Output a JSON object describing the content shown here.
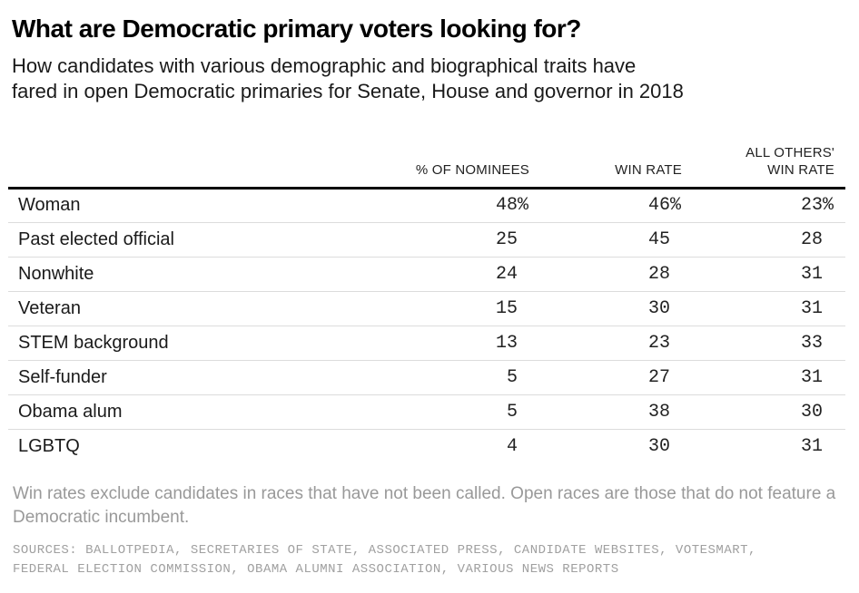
{
  "header": {
    "title": "What are Democratic primary voters looking for?",
    "subtitle": "How candidates with various demographic and biographical traits have\nfared in open Democratic primaries for Senate, House and governor in 2018"
  },
  "chart_data": {
    "type": "table",
    "title": "What are Democratic primary voters looking for?",
    "subtitle": "How candidates with various demographic and biographical traits have fared in open Democratic primaries for Senate, House and governor in 2018",
    "columns": [
      "% OF NOMINEES",
      "WIN RATE",
      "ALL OTHERS' WIN RATE"
    ],
    "col_headers_display": [
      "% OF NOMINEES",
      "WIN RATE",
      "ALL OTHERS'\nWIN RATE"
    ],
    "units": "percent",
    "rows": [
      {
        "label": "Woman",
        "values": [
          48,
          46,
          23
        ],
        "suffix": "%"
      },
      {
        "label": "Past elected official",
        "values": [
          25,
          45,
          28
        ],
        "suffix": ""
      },
      {
        "label": "Nonwhite",
        "values": [
          24,
          28,
          31
        ],
        "suffix": ""
      },
      {
        "label": "Veteran",
        "values": [
          15,
          30,
          31
        ],
        "suffix": ""
      },
      {
        "label": "STEM background",
        "values": [
          13,
          23,
          33
        ],
        "suffix": ""
      },
      {
        "label": "Self-funder",
        "values": [
          5,
          27,
          31
        ],
        "suffix": ""
      },
      {
        "label": "Obama alum",
        "values": [
          5,
          38,
          30
        ],
        "suffix": ""
      },
      {
        "label": "LGBTQ",
        "values": [
          4,
          30,
          31
        ],
        "suffix": ""
      }
    ]
  },
  "footer": {
    "note": "Win rates exclude candidates in races that have not been called. Open races are those that do not feature a\nDemocratic incumbent.",
    "sources": "SOURCES: BALLOTPEDIA, SECRETARIES OF STATE, ASSOCIATED PRESS, CANDIDATE WEBSITES, VOTESMART,\nFEDERAL ELECTION COMMISSION, OBAMA ALUMNI ASSOCIATION, VARIOUS NEWS REPORTS"
  },
  "colors": {
    "heavy_rule": "#000000",
    "light_rule": "#dcdcdc",
    "muted_text": "#999999"
  }
}
